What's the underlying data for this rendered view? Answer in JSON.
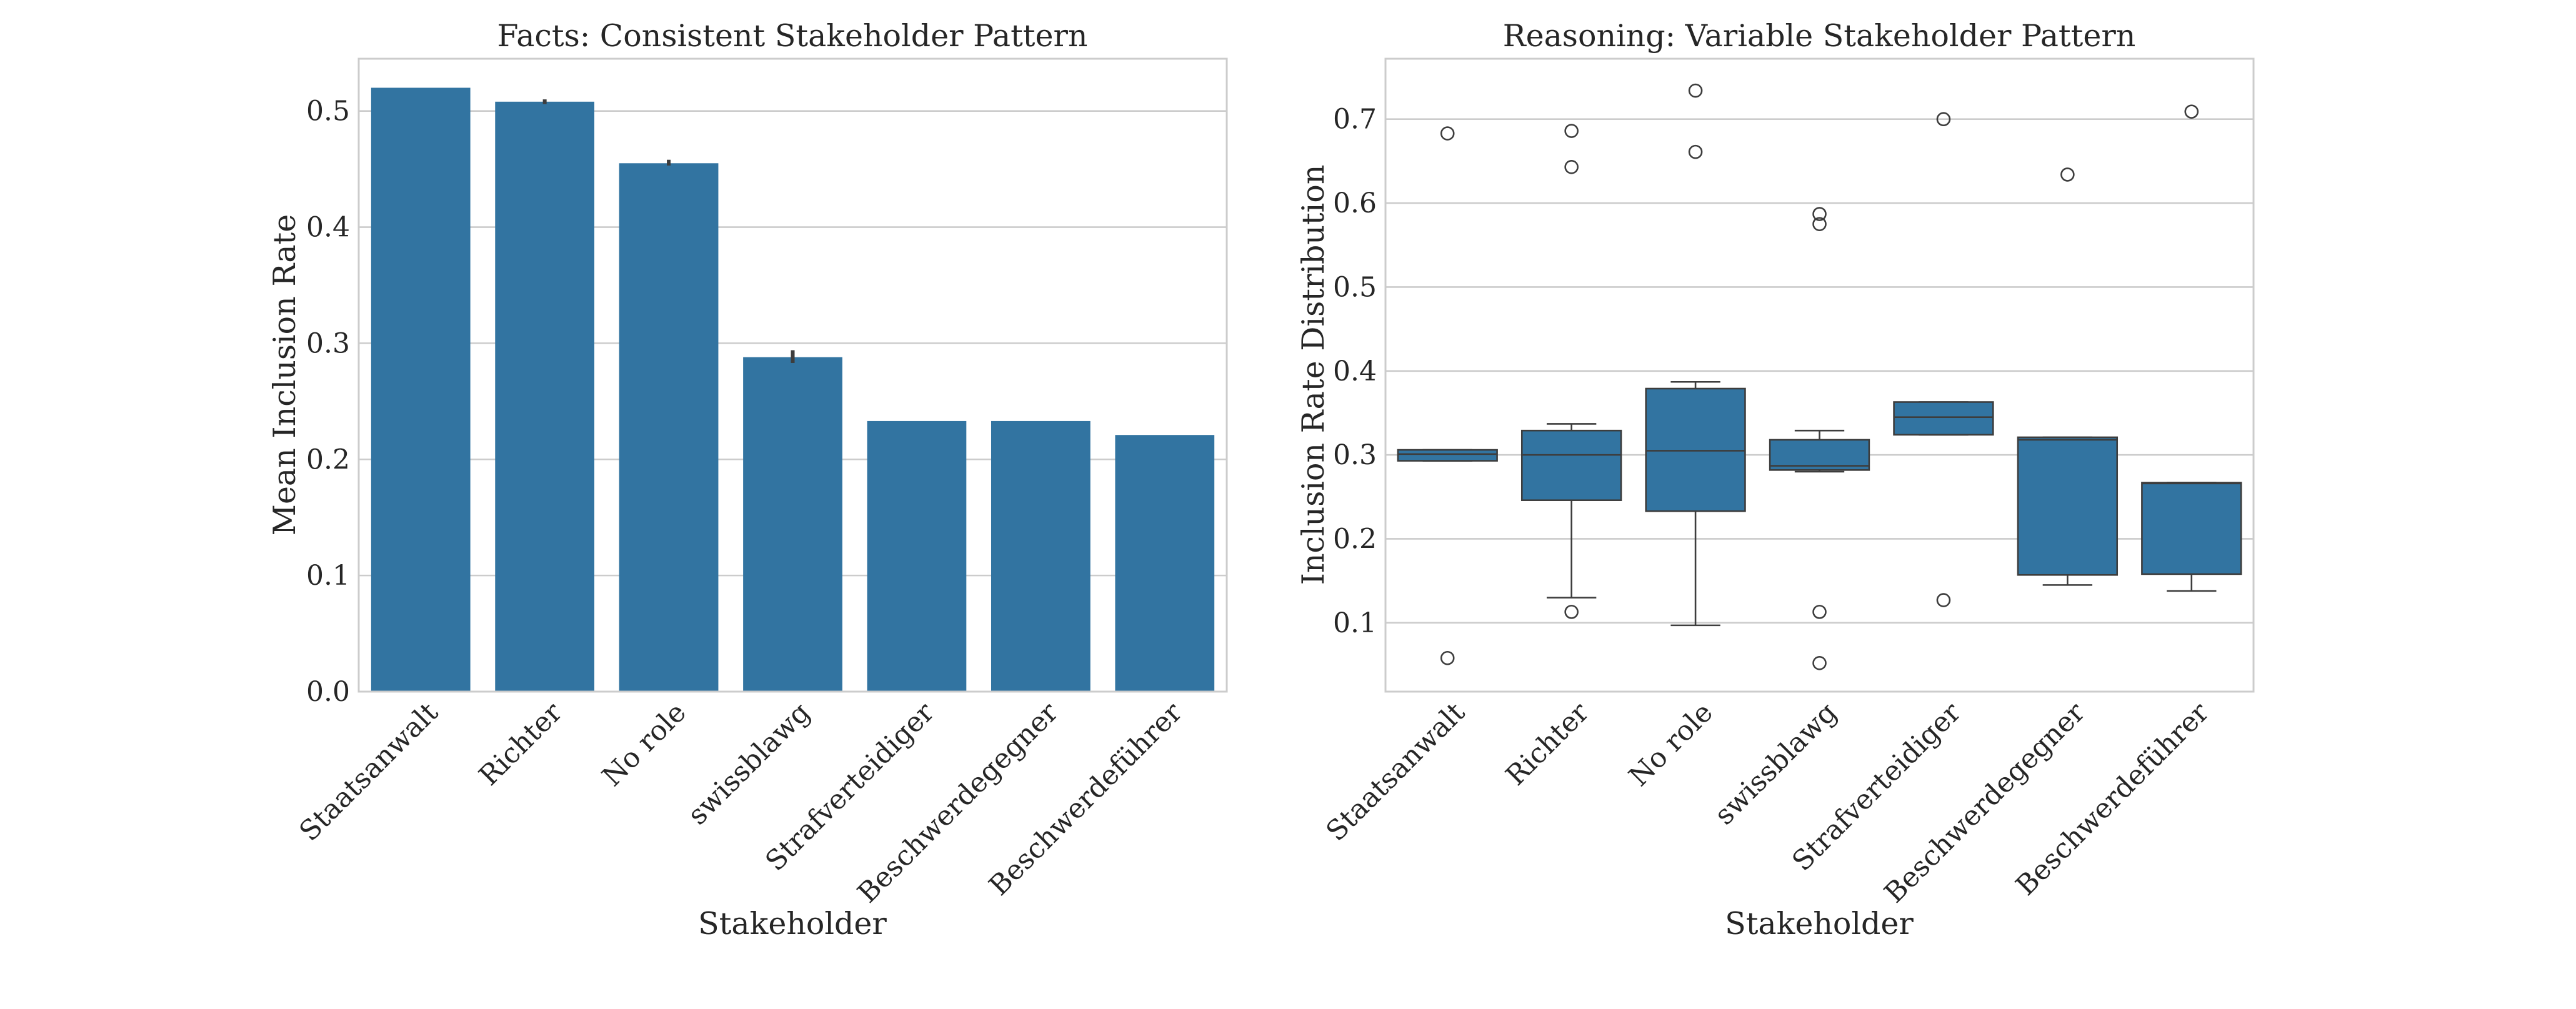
{
  "chart_data": [
    {
      "type": "bar",
      "title": "Facts: Consistent Stakeholder Pattern",
      "xlabel": "Stakeholder",
      "ylabel": "Mean Inclusion Rate",
      "categories": [
        "Staatsanwalt",
        "Richter",
        "No role",
        "swissblawg",
        "Strafverteidiger",
        "Beschwerdegegner",
        "Beschwerdeführer"
      ],
      "values": [
        0.52,
        0.508,
        0.455,
        0.288,
        0.233,
        0.233,
        0.221
      ],
      "error_bars": [
        {
          "category": "Richter",
          "low": 0.506,
          "high": 0.51
        },
        {
          "category": "No role",
          "low": 0.453,
          "high": 0.458
        },
        {
          "category": "swissblawg",
          "low": 0.283,
          "high": 0.294
        }
      ],
      "ylim": [
        0,
        0.545
      ],
      "yticks": [
        0.0,
        0.1,
        0.2,
        0.3,
        0.4,
        0.5
      ],
      "ytick_labels": [
        "0.0",
        "0.1",
        "0.2",
        "0.3",
        "0.4",
        "0.5"
      ],
      "grid": true,
      "color": "#3274a1"
    },
    {
      "type": "box",
      "title": "Reasoning: Variable Stakeholder Pattern",
      "xlabel": "Stakeholder",
      "ylabel": "Inclusion Rate Distribution",
      "categories": [
        "Staatsanwalt",
        "Richter",
        "No role",
        "swissblawg",
        "Strafverteidiger",
        "Beschwerdegegner",
        "Beschwerdeführer"
      ],
      "boxes": [
        {
          "q1": 0.293,
          "median": 0.301,
          "q3": 0.306,
          "whisker_low": 0.293,
          "whisker_high": 0.306,
          "outliers": [
            0.683,
            0.058
          ]
        },
        {
          "q1": 0.246,
          "median": 0.3,
          "q3": 0.329,
          "whisker_low": 0.13,
          "whisker_high": 0.337,
          "outliers": [
            0.686,
            0.643,
            0.113
          ]
        },
        {
          "q1": 0.233,
          "median": 0.305,
          "q3": 0.379,
          "whisker_low": 0.097,
          "whisker_high": 0.387,
          "outliers": [
            0.734,
            0.661
          ]
        },
        {
          "q1": 0.282,
          "median": 0.287,
          "q3": 0.318,
          "whisker_low": 0.28,
          "whisker_high": 0.329,
          "outliers": [
            0.587,
            0.575,
            0.113,
            0.052
          ]
        },
        {
          "q1": 0.324,
          "median": 0.345,
          "q3": 0.363,
          "whisker_low": 0.324,
          "whisker_high": 0.363,
          "outliers": [
            0.7,
            0.127
          ]
        },
        {
          "q1": 0.157,
          "median": 0.318,
          "q3": 0.321,
          "whisker_low": 0.145,
          "whisker_high": 0.321,
          "outliers": [
            0.634
          ]
        },
        {
          "q1": 0.158,
          "median": 0.266,
          "q3": 0.267,
          "whisker_low": 0.138,
          "whisker_high": 0.267,
          "outliers": [
            0.709
          ]
        }
      ],
      "ylim": [
        0.018,
        0.772
      ],
      "yticks": [
        0.1,
        0.2,
        0.3,
        0.4,
        0.5,
        0.6,
        0.7
      ],
      "ytick_labels": [
        "0.1",
        "0.2",
        "0.3",
        "0.4",
        "0.5",
        "0.6",
        "0.7"
      ],
      "grid": true,
      "color": "#3274a1"
    }
  ]
}
